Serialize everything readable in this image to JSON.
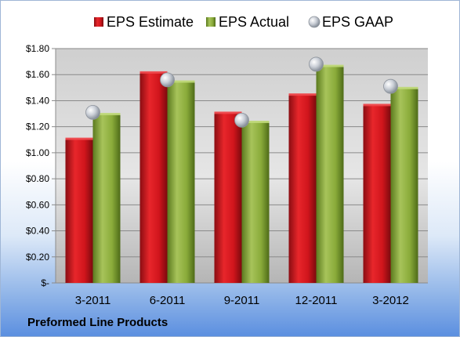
{
  "colors": {
    "estimate": "#c8102e",
    "actual": "#8aab3a",
    "gaap": "#c9ced6"
  },
  "footer": {
    "company": "Preformed Line Products"
  },
  "chart_data": {
    "type": "bar",
    "categories": [
      "3-2011",
      "6-2011",
      "9-2011",
      "12-2011",
      "3-2012"
    ],
    "series": [
      {
        "name": "EPS Estimate",
        "kind": "bar",
        "values": [
          1.11,
          1.62,
          1.31,
          1.45,
          1.37
        ]
      },
      {
        "name": "EPS Actual",
        "kind": "bar",
        "values": [
          1.3,
          1.55,
          1.24,
          1.67,
          1.5
        ]
      },
      {
        "name": "EPS GAAP",
        "kind": "marker",
        "values": [
          1.31,
          1.56,
          1.25,
          1.68,
          1.51
        ]
      }
    ],
    "ylim": [
      0,
      1.8
    ],
    "yticks": [
      0,
      0.2,
      0.4,
      0.6,
      0.8,
      1.0,
      1.2,
      1.4,
      1.6,
      1.8
    ],
    "ytick_labels": [
      "$-",
      "$0.20",
      "$0.40",
      "$0.60",
      "$0.80",
      "$1.00",
      "$1.20",
      "$1.40",
      "$1.60",
      "$1.80"
    ],
    "title": "",
    "xlabel": "",
    "ylabel": "",
    "legend": "top",
    "grid": true
  }
}
